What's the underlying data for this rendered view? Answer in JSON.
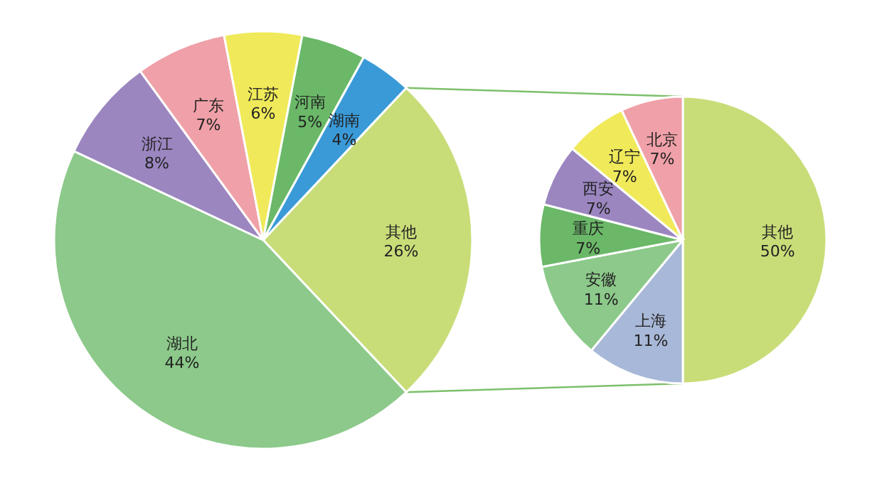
{
  "chart_data": [
    {
      "type": "pie",
      "categories": [
        "其他",
        "湖北",
        "浙江",
        "广东",
        "江苏",
        "河南",
        "湖南"
      ],
      "values": [
        26,
        44,
        8,
        7,
        6,
        5,
        4
      ],
      "value_labels": [
        "26%",
        "44%",
        "8%",
        "7%",
        "6%",
        "5%",
        "4%"
      ],
      "colors": [
        "#c8dd78",
        "#8cc98a",
        "#9b86c0",
        "#f0a0a8",
        "#f0ea5a",
        "#6ab868",
        "#3a9ad8"
      ]
    },
    {
      "type": "pie",
      "categories": [
        "其他",
        "上海",
        "安徽",
        "重庆",
        "西安",
        "辽宁",
        "北京"
      ],
      "values": [
        50,
        11,
        11,
        7,
        7,
        7,
        7
      ],
      "value_labels": [
        "50%",
        "11%",
        "11%",
        "7%",
        "7%",
        "7%",
        "7%"
      ],
      "colors": [
        "#c8dd78",
        "#a8b8d8",
        "#8cc98a",
        "#6ab868",
        "#9b86c0",
        "#f0ea5a",
        "#f0a0a8"
      ]
    }
  ]
}
